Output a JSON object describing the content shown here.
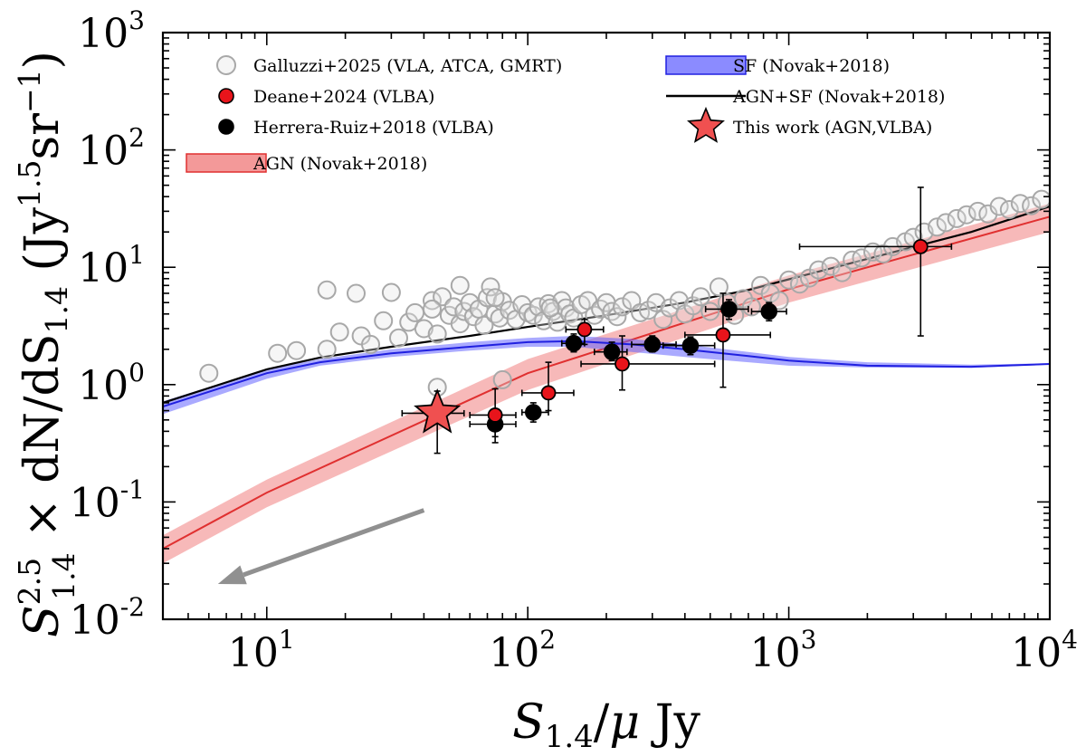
{
  "chart_data": {
    "type": "scatter",
    "title": "",
    "xlabel": "S_{1.4}/μ Jy",
    "ylabel": "S_{1.4}^{2.5} × dN/dS_{1.4} (Jy^{1.5}sr^{-1})",
    "xscale": "log",
    "yscale": "log",
    "xlim": [
      4,
      10000
    ],
    "ylim": [
      0.01,
      1000
    ],
    "x_ticks": [
      "10^1",
      "10^2",
      "10^3",
      "10^4"
    ],
    "y_ticks": [
      "10^-2",
      "10^-1",
      "10^0",
      "10^1",
      "10^2",
      "10^3"
    ],
    "grid": false,
    "legend_position": "top",
    "legend": [
      {
        "label": "Galluzzi+2025 (VLA, ATCA, GMRT)",
        "kind": "open-circle",
        "color": "#aaaaaa"
      },
      {
        "label": "Deane+2024 (VLBA)",
        "kind": "filled-circle",
        "color": "#e8141b"
      },
      {
        "label": "Herrera-Ruiz+2018 (VLBA)",
        "kind": "filled-circle",
        "color": "#000000"
      },
      {
        "label": "AGN (Novak+2018)",
        "kind": "band",
        "color": "#f08080"
      },
      {
        "label": "SF (Novak+2018)",
        "kind": "band",
        "color": "#6464ff"
      },
      {
        "label": "AGN+SF (Novak+2018)",
        "kind": "line",
        "color": "#000000"
      },
      {
        "label": "This work (AGN,VLBA)",
        "kind": "star",
        "color": "#f05050"
      }
    ],
    "series": [
      {
        "name": "Galluzzi+2025 (VLA, ATCA, GMRT)",
        "x": [
          6,
          11,
          13,
          17,
          17,
          19,
          22,
          23,
          25,
          28,
          30,
          32,
          35,
          37,
          40,
          43,
          45,
          47,
          50,
          52,
          55,
          57,
          60,
          62,
          65,
          68,
          70,
          72,
          75,
          78,
          80,
          85,
          90,
          95,
          100,
          105,
          110,
          115,
          120,
          125,
          130,
          135,
          140,
          145,
          150,
          160,
          170,
          180,
          190,
          200,
          210,
          220,
          230,
          250,
          270,
          290,
          310,
          330,
          350,
          380,
          400,
          430,
          460,
          500,
          540,
          580,
          620,
          670,
          720,
          780,
          850,
          920,
          1000,
          1100,
          1200,
          1300,
          1450,
          1600,
          1750,
          1900,
          2100,
          2300,
          2500,
          2800,
          3000,
          3300,
          3700,
          4000,
          4400,
          4800,
          5300,
          5800,
          6400,
          7000,
          7700,
          8500,
          9300,
          43,
          75,
          45,
          122,
          55,
          80
        ],
        "y": [
          1.25,
          1.85,
          1.95,
          6.4,
          2.0,
          2.8,
          6.0,
          2.6,
          2.2,
          3.5,
          6.1,
          2.5,
          3.4,
          4.1,
          3.0,
          5.2,
          2.7,
          5.6,
          3.9,
          4.6,
          3.3,
          4.2,
          5.0,
          3.8,
          4.4,
          3.2,
          5.5,
          6.8,
          4.0,
          3.7,
          5.1,
          4.3,
          3.6,
          4.8,
          4.1,
          3.9,
          4.6,
          3.5,
          4.9,
          4.2,
          3.4,
          5.2,
          4.5,
          4.0,
          3.7,
          4.8,
          5.2,
          3.9,
          4.4,
          5.0,
          4.2,
          3.8,
          4.6,
          5.2,
          4.1,
          4.3,
          5.0,
          3.6,
          4.5,
          5.2,
          4.0,
          4.7,
          5.6,
          4.2,
          6.8,
          5.0,
          3.9,
          5.4,
          4.6,
          7.0,
          6.0,
          5.2,
          7.8,
          7.2,
          8.1,
          9.5,
          10.2,
          9.0,
          11.5,
          12.0,
          13.5,
          13.0,
          15.0,
          16.5,
          18.0,
          20.0,
          22.0,
          24.0,
          26.0,
          28.0,
          30.0,
          28.5,
          33.0,
          31.0,
          35.0,
          33.5,
          38.0,
          4.4,
          5.5,
          0.95,
          4.5,
          7.0,
          1.1
        ]
      },
      {
        "name": "Deane+2024 (VLBA)",
        "x": [
          75,
          120,
          165,
          230,
          560,
          3200
        ],
        "y": [
          0.55,
          0.85,
          2.95,
          1.5,
          2.65,
          15.0
        ],
        "xerr_low": [
          60,
          95,
          140,
          160,
          400,
          1100
        ],
        "xerr_high": [
          90,
          150,
          195,
          520,
          850,
          4200
        ],
        "yerr_low": [
          0.36,
          0.6,
          2.2,
          0.9,
          0.95,
          2.6
        ],
        "yerr_high": [
          0.92,
          1.55,
          3.6,
          2.6,
          6.0,
          48
        ]
      },
      {
        "name": "Herrera-Ruiz+2018 (VLBA)",
        "x": [
          75,
          105,
          150,
          210,
          300,
          420,
          590,
          840
        ],
        "y": [
          0.46,
          0.58,
          2.25,
          1.9,
          2.2,
          2.15,
          4.4,
          4.2
        ],
        "xerr_low": [
          60,
          95,
          135,
          180,
          250,
          330,
          480,
          720
        ],
        "xerr_high": [
          90,
          120,
          165,
          240,
          370,
          520,
          700,
          980
        ],
        "yerr_low": [
          0.32,
          0.48,
          1.9,
          1.6,
          1.9,
          1.8,
          3.6,
          3.5
        ],
        "yerr_high": [
          0.6,
          0.7,
          2.7,
          2.3,
          2.6,
          2.55,
          5.3,
          5.0
        ]
      },
      {
        "name": "This work (AGN,VLBA)",
        "x": [
          45
        ],
        "y": [
          0.57
        ],
        "xerr_low": [
          33
        ],
        "xerr_high": [
          57
        ],
        "yerr_low": [
          0.26
        ],
        "yerr_high": [
          0.88
        ]
      },
      {
        "name": "AGN (Novak+2018)",
        "x": [
          4,
          10,
          100,
          1000,
          10000
        ],
        "y": [
          0.04,
          0.12,
          1.25,
          6.5,
          27
        ],
        "y_low": [
          0.03,
          0.09,
          0.9,
          5.0,
          20
        ],
        "y_high": [
          0.052,
          0.155,
          1.65,
          8.5,
          35
        ]
      },
      {
        "name": "SF (Novak+2018)",
        "x": [
          4,
          10,
          16,
          30,
          60,
          100,
          150,
          250,
          400,
          700,
          1000,
          2000,
          5000,
          10000
        ],
        "y": [
          0.65,
          1.25,
          1.55,
          1.85,
          2.1,
          2.3,
          2.35,
          2.2,
          2.0,
          1.75,
          1.6,
          1.45,
          1.42,
          1.5
        ],
        "y_low": [
          0.56,
          1.12,
          1.45,
          1.72,
          1.95,
          2.1,
          2.1,
          1.9,
          1.72,
          1.55,
          1.45,
          1.4,
          1.39,
          1.48
        ],
        "y_high": [
          0.72,
          1.35,
          1.65,
          2.0,
          2.3,
          2.5,
          2.6,
          2.45,
          2.2,
          1.9,
          1.72,
          1.55,
          1.48,
          1.52
        ]
      },
      {
        "name": "AGN+SF (Novak+2018)",
        "x": [
          4,
          10,
          16,
          30,
          60,
          100,
          200,
          400,
          700,
          1000,
          2000,
          5000,
          10000
        ],
        "y": [
          0.7,
          1.35,
          1.7,
          2.1,
          2.6,
          3.1,
          3.9,
          5.0,
          6.4,
          7.9,
          11.8,
          20.0,
          33.0
        ]
      }
    ],
    "annotation": {
      "kind": "arrow",
      "color": "#909090",
      "from": [
        40,
        0.085
      ],
      "to": [
        6.5,
        0.02
      ]
    }
  }
}
